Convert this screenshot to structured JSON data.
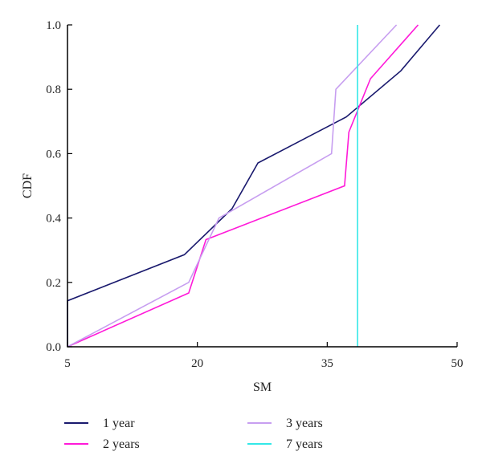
{
  "chart_data": {
    "type": "line",
    "xlabel": "SM",
    "ylabel": "CDF",
    "xlim": [
      5,
      50
    ],
    "ylim": [
      0,
      1
    ],
    "xticks": [
      5,
      20,
      35,
      50
    ],
    "yticks": [
      0.0,
      0.2,
      0.4,
      0.6,
      0.8,
      1.0
    ],
    "xtick_labels": [
      "5",
      "20",
      "35",
      "50"
    ],
    "ytick_labels": [
      "0.0",
      "0.2",
      "0.4",
      "0.6",
      "0.8",
      "1.0"
    ],
    "grid": false,
    "legend_position": "bottom",
    "series": [
      {
        "name": "1 year",
        "color": "#1a1a6e",
        "points": [
          [
            5,
            0
          ],
          [
            5,
            0.143
          ],
          [
            18.5,
            0.286
          ],
          [
            24,
            0.429
          ],
          [
            27,
            0.571
          ],
          [
            37.2,
            0.714
          ],
          [
            43.5,
            0.857
          ],
          [
            48,
            1.0
          ]
        ]
      },
      {
        "name": "2 years",
        "color": "#ff1ad9",
        "points": [
          [
            5,
            0
          ],
          [
            19,
            0.167
          ],
          [
            21,
            0.333
          ],
          [
            37,
            0.5
          ],
          [
            37.5,
            0.667
          ],
          [
            40,
            0.833
          ],
          [
            45.5,
            1.0
          ]
        ]
      },
      {
        "name": "3 years",
        "color": "#c79ef0",
        "points": [
          [
            5,
            0
          ],
          [
            19,
            0.2
          ],
          [
            22.5,
            0.4
          ],
          [
            35.5,
            0.6
          ],
          [
            36,
            0.8
          ],
          [
            43,
            1.0
          ]
        ]
      },
      {
        "name": "7 years",
        "color": "#33e8e8",
        "points": [
          [
            38.5,
            0
          ],
          [
            38.5,
            1.0
          ]
        ]
      }
    ]
  }
}
